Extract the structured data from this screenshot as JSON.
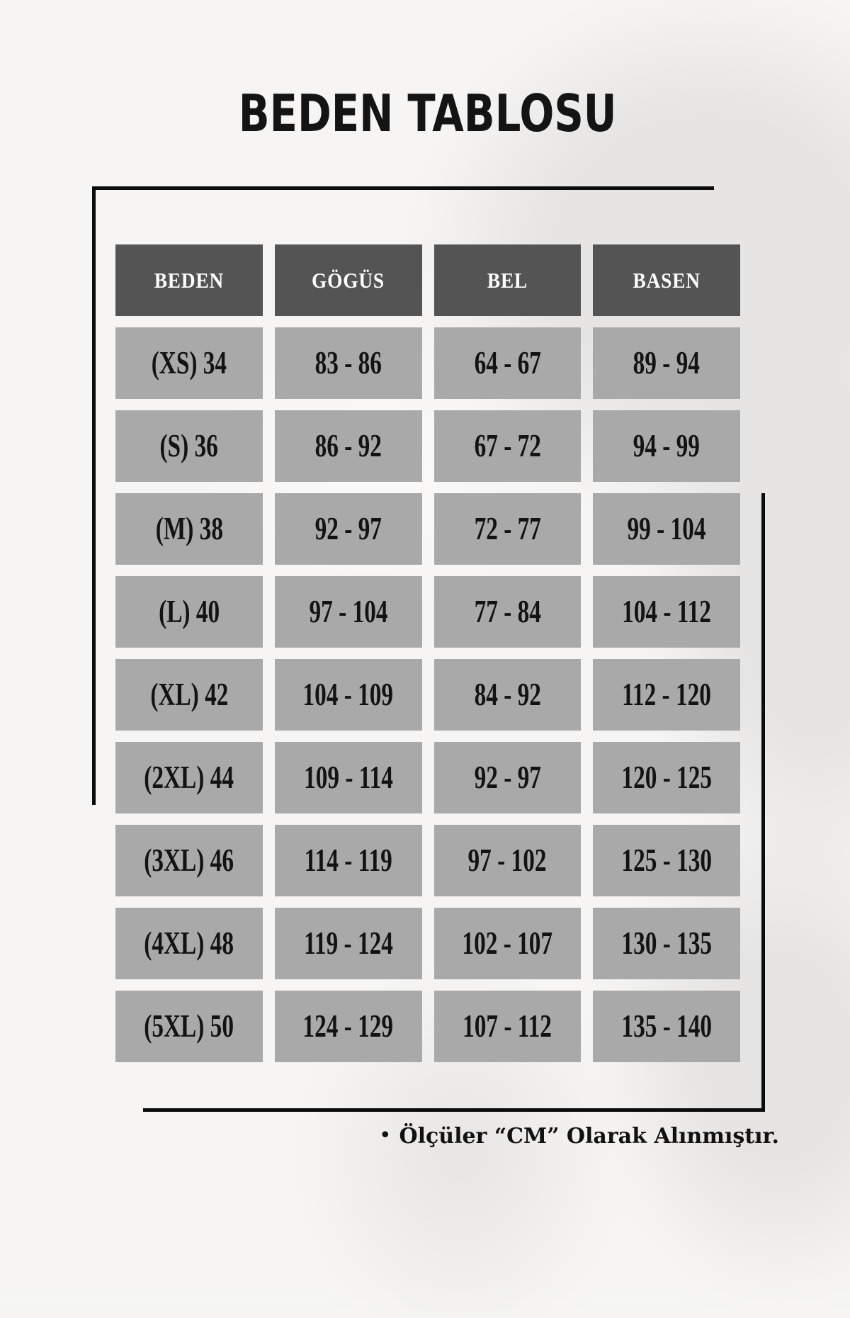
{
  "title": "BEDEN TABLOSU",
  "chart_data": {
    "type": "table",
    "title": "BEDEN TABLOSU",
    "columns": [
      "BEDEN",
      "GÖGÜS",
      "BEL",
      "BASEN"
    ],
    "rows": [
      [
        "(XS) 34",
        "83 - 86",
        "64 - 67",
        "89 - 94"
      ],
      [
        "(S) 36",
        "86 - 92",
        "67 - 72",
        "94 - 99"
      ],
      [
        "(M) 38",
        "92 - 97",
        "72 - 77",
        "99 - 104"
      ],
      [
        "(L) 40",
        "97 - 104",
        "77 - 84",
        "104 - 112"
      ],
      [
        "(XL) 42",
        "104 - 109",
        "84 - 92",
        "112 - 120"
      ],
      [
        "(2XL) 44",
        "109 - 114",
        "92 - 97",
        "120 - 125"
      ],
      [
        "(3XL) 46",
        "114 - 119",
        "97 - 102",
        "125 - 130"
      ],
      [
        "(4XL) 48",
        "119 - 124",
        "102 - 107",
        "130 - 135"
      ],
      [
        "(5XL) 50",
        "124 - 129",
        "107 - 112",
        "135 - 140"
      ]
    ],
    "note_bullet": "•",
    "note": "Ölçüler “CM” Olarak Alınmıştır.",
    "units": "CM"
  },
  "colors": {
    "page_bg": "#f6f5f3",
    "silhouette": "#e7e5e3",
    "header_bg": "#545454",
    "header_text": "#ffffff",
    "cell_bg": "#a9a9a9",
    "cell_text": "#131313",
    "line": "#0c0c0c",
    "title_text": "#141414"
  }
}
